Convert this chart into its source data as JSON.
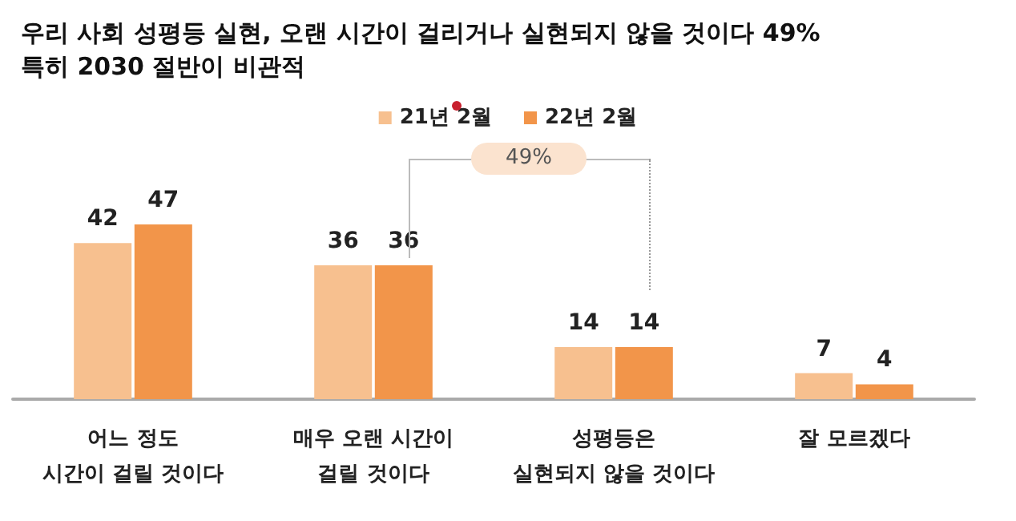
{
  "chart_data": {
    "type": "bar",
    "title": "우리 사회 성평등 실현, 오랜 시간이 걸리거나 실현되지 않을 것이다 49%",
    "subtitle": "특히 2030 절반이 비관적",
    "categories": [
      "어느 정도\n시간이 걸릴 것이다",
      "매우 오랜 시간이\n걸릴 것이다",
      "성평등은\n실현되지 않을 것이다",
      "잘 모르겠다"
    ],
    "series": [
      {
        "name": "21년 2월",
        "color": "#f7c08f",
        "values": [
          42,
          36,
          14,
          7
        ]
      },
      {
        "name": "22년 2월",
        "color": "#f2954a",
        "values": [
          47,
          36,
          14,
          4
        ]
      }
    ],
    "data_labels": true,
    "legend": "top",
    "annotations": [
      "49%"
    ]
  }
}
